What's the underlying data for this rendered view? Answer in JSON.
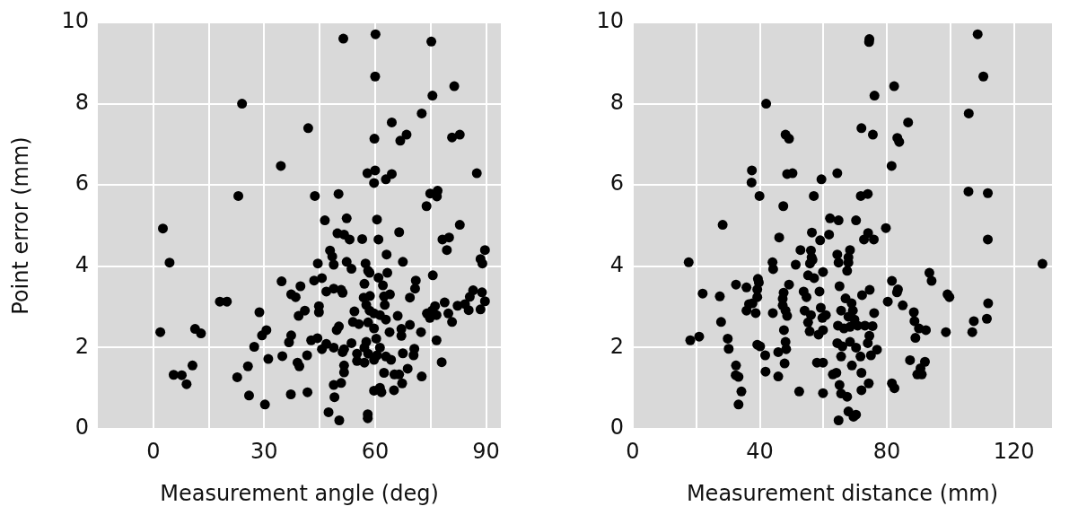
{
  "chart_data": [
    {
      "type": "scatter",
      "xlabel": "Measurement angle (deg)",
      "ylabel": "Point error (mm)",
      "color": "#000000",
      "marker": "circle",
      "grid": true,
      "xlim": [
        -15,
        94
      ],
      "xticks": [
        0,
        {
          "value": 15,
          "label": null
        },
        30,
        {
          "value": 45,
          "label": null
        },
        60,
        {
          "value": 75,
          "label": null
        },
        90
      ],
      "ylim": [
        0,
        10
      ],
      "yticks": [
        0,
        2,
        4,
        6,
        8,
        10
      ],
      "x": [
        24,
        34.5,
        23,
        2.6,
        4.4,
        34.7,
        39.8,
        37.3,
        38.5,
        18,
        19.9,
        28.7,
        39.3,
        1.9,
        11.3,
        12.9,
        30.6,
        29.4,
        37.3,
        36.7,
        27.3,
        10.6,
        5.5,
        7.7,
        9,
        31.1,
        34.9,
        25.6,
        22.7,
        39,
        39.5,
        25.9,
        30.2,
        37.2,
        41,
        51.4,
        60.1,
        75.2,
        60,
        81.4,
        75.5,
        72.6,
        41.9,
        64.5,
        59.8,
        68.5,
        66.8,
        80.8,
        82.9,
        57.9,
        60,
        59.7,
        64.5,
        62.9,
        87.5,
        43.7,
        50.1,
        74.9,
        76.9,
        76.7,
        73.9,
        46.4,
        52.3,
        60.5,
        82.9,
        49.8,
        51.6,
        53.1,
        56.5,
        60.9,
        66.5,
        78.2,
        80,
        79.4,
        89.7,
        88.5,
        89,
        47.8,
        48.4,
        63.1,
        67.5,
        44.5,
        48.8,
        52.3,
        53.6,
        57.4,
        58.1,
        58.5,
        63.3,
        60.9,
        75.6,
        43.5,
        45.6,
        71,
        70.8,
        57.1,
        62.1,
        46.8,
        48.8,
        50.8,
        51.2,
        56.9,
        58.6,
        62.4,
        64,
        69.4,
        57.6,
        62.6,
        86.5,
        88.9,
        85.6,
        89.7,
        88.5,
        85.3,
        78.8,
        82.3,
        84.3,
        76.2,
        74,
        75.4,
        74.8,
        76.6,
        79.8,
        80.8,
        44.8,
        44.8,
        54.4,
        58.5,
        59.7,
        61.3,
        66.1,
        54,
        55.6,
        58.1,
        59.7,
        62.9,
        69.4,
        72.4,
        50.2,
        49.6,
        63.9,
        67.1,
        67.1,
        60.3,
        57.6,
        42.7,
        44.4,
        46.8,
        45.6,
        48.8,
        53.6,
        51.6,
        51.2,
        57.1,
        55.1,
        58.1,
        61.3,
        60.5,
        67.5,
        70.6,
        70.4,
        76.6,
        41.6,
        55.1,
        57.1,
        59.7,
        64.3,
        62.9,
        78,
        51.6,
        51.6,
        68.8,
        62.4,
        65.2,
        66.5,
        72.6,
        48.8,
        50.8,
        67.3,
        41.7,
        49,
        59.7,
        61.7,
        61.3,
        65.1,
        47.4,
        50.3,
        58,
        58
      ],
      "values": [
        8.0,
        6.47,
        5.73,
        4.93,
        4.09,
        3.63,
        3.51,
        3.31,
        3.24,
        3.13,
        3.13,
        2.87,
        2.78,
        2.38,
        2.46,
        2.35,
        2.43,
        2.3,
        2.3,
        2.13,
        2.02,
        1.56,
        1.33,
        1.32,
        1.1,
        1.72,
        1.79,
        1.54,
        1.27,
        1.63,
        1.54,
        0.82,
        0.6,
        0.85,
        2.91,
        9.6,
        9.71,
        9.53,
        8.67,
        8.43,
        8.2,
        7.76,
        7.4,
        7.54,
        7.14,
        7.24,
        7.09,
        7.17,
        7.24,
        6.29,
        6.36,
        6.05,
        6.27,
        6.14,
        6.29,
        5.73,
        5.78,
        5.79,
        5.86,
        5.72,
        5.48,
        5.13,
        5.18,
        5.15,
        5.02,
        4.81,
        4.78,
        4.66,
        4.67,
        4.66,
        4.84,
        4.66,
        4.71,
        4.4,
        4.4,
        4.18,
        4.07,
        4.39,
        4.24,
        4.29,
        4.11,
        4.07,
        4.04,
        4.11,
        3.94,
        4.07,
        3.89,
        3.84,
        3.84,
        3.72,
        3.78,
        3.65,
        3.71,
        3.65,
        3.45,
        3.57,
        3.53,
        3.38,
        3.45,
        3.42,
        3.35,
        3.23,
        3.27,
        3.26,
        3.31,
        3.23,
        3.05,
        3.05,
        3.41,
        3.36,
        3.25,
        3.14,
        2.94,
        2.92,
        3.11,
        3.03,
        3.07,
        3.02,
        2.84,
        2.91,
        2.73,
        2.8,
        2.84,
        2.63,
        3.02,
        2.87,
        2.89,
        2.91,
        2.84,
        2.8,
        2.78,
        2.63,
        2.58,
        2.62,
        2.47,
        2.69,
        2.56,
        2.38,
        2.52,
        2.43,
        2.38,
        2.46,
        2.29,
        2.22,
        2.14,
        2.18,
        2.23,
        2.09,
        1.96,
        2.0,
        2.11,
        1.96,
        1.89,
        2.0,
        1.85,
        1.85,
        2.0,
        1.81,
        1.86,
        1.97,
        1.81,
        2.18,
        1.81,
        1.67,
        1.63,
        1.7,
        1.7,
        1.78,
        1.64,
        1.56,
        1.39,
        1.48,
        1.38,
        1.34,
        1.34,
        1.29,
        1.08,
        1.13,
        1.12,
        0.9,
        0.78,
        0.94,
        0.9,
        1.01,
        0.95,
        0.41,
        0.21,
        0.36,
        0.26
      ]
    },
    {
      "type": "scatter",
      "xlabel": "Measurement distance (mm)",
      "color": "#000000",
      "marker": "circle",
      "grid": true,
      "xlim": [
        0,
        132
      ],
      "xticks": [
        0,
        {
          "value": 20,
          "label": null
        },
        40,
        {
          "value": 60,
          "label": null
        },
        80,
        {
          "value": 100,
          "label": null
        },
        120
      ],
      "ylim": [
        0,
        10
      ],
      "yticks": [
        0,
        2,
        4,
        6,
        8,
        10
      ],
      "x": [
        42,
        48.1,
        49.2,
        37.5,
        37.4,
        48.6,
        50.3,
        59.4,
        39.9,
        57,
        47.4,
        28.3,
        62.1,
        46.1,
        56.4,
        59,
        61.8,
        52.8,
        56.1,
        56.3,
        55.8,
        56.6,
        17.6,
        44,
        44.2,
        51.3,
        59.9,
        55.2,
        57.1,
        39.4,
        39.7,
        32.5,
        35.8,
        49.2,
        22,
        27.4,
        39.2,
        39.2,
        47.5,
        47.2,
        47.2,
        53.8,
        54.7,
        58.8,
        36.6,
        37.7,
        35.8,
        38.7,
        44.1,
        48.6,
        48.1,
        54.1,
        56.1,
        55.2,
        55.7,
        59.2,
        60.8,
        59.7,
        27.8,
        47.6,
        58.5,
        59.9,
        18.1,
        20.9,
        29.9,
        30.2,
        39.2,
        40.1,
        41.7,
        45.8,
        48.3,
        48.1,
        58,
        59.9,
        47.8,
        32.5,
        32.4,
        33.3,
        41.8,
        45.8,
        34.2,
        33.3,
        52.4,
        59.9,
        63,
        74.5,
        74.4,
        108.6,
        110.4,
        82.3,
        76.1,
        105.8,
        86.7,
        72,
        75.6,
        83.3,
        83.9,
        64.4,
        81.5,
        71.8,
        74,
        105.7,
        111.8,
        64.8,
        70.3,
        79.7,
        74.1,
        72.8,
        75.9,
        111.8,
        68.4,
        67.9,
        67.9,
        67.5,
        64.4,
        64.8,
        129,
        93.4,
        94.1,
        81.6,
        83.5,
        83.2,
        65.1,
        74.6,
        72.2,
        67,
        68.9,
        65.6,
        69.3,
        67.9,
        69.8,
        80.3,
        85,
        99.1,
        99.7,
        111.9,
        111.5,
        76,
        88.5,
        88.7,
        90.1,
        92.3,
        89,
        107.4,
        106.9,
        98.6,
        64.6,
        66.5,
        68.4,
        70.8,
        73.1,
        75.5,
        74.5,
        74,
        76.9,
        75,
        64.4,
        66,
        68.4,
        70.3,
        65.6,
        71.7,
        69,
        72,
        87.3,
        92,
        90.6,
        89.6,
        91,
        64.1,
        65.1,
        65.6,
        67.5,
        74.3,
        72,
        81.6,
        82.4,
        64.8,
        67.9,
        69.5,
        70.3
      ],
      "values": [
        8.0,
        7.24,
        7.14,
        6.36,
        6.06,
        6.27,
        6.29,
        6.14,
        5.73,
        5.73,
        5.48,
        5.02,
        5.18,
        4.71,
        4.83,
        4.64,
        4.78,
        4.4,
        4.39,
        4.22,
        4.07,
        4.16,
        4.1,
        4.1,
        3.93,
        4.04,
        3.86,
        3.78,
        3.71,
        3.69,
        3.6,
        3.55,
        3.48,
        3.55,
        3.33,
        3.26,
        3.43,
        3.24,
        3.35,
        3.2,
        3.04,
        3.38,
        3.24,
        3.38,
        3.07,
        3.09,
        2.91,
        2.85,
        2.85,
        2.78,
        2.91,
        2.91,
        2.8,
        2.62,
        2.4,
        2.98,
        2.8,
        2.73,
        2.63,
        2.43,
        2.32,
        2.43,
        2.18,
        2.27,
        2.22,
        1.97,
        2.07,
        2.03,
        1.81,
        1.89,
        1.96,
        2.14,
        1.63,
        1.63,
        1.61,
        1.56,
        1.32,
        1.28,
        1.41,
        1.29,
        0.92,
        0.6,
        0.92,
        0.88,
        1.34,
        9.59,
        9.52,
        9.71,
        8.67,
        8.43,
        8.2,
        7.76,
        7.54,
        7.4,
        7.24,
        7.16,
        7.06,
        6.29,
        6.47,
        5.73,
        5.78,
        5.84,
        5.8,
        5.13,
        5.13,
        4.94,
        4.82,
        4.66,
        4.66,
        4.66,
        4.4,
        4.22,
        4.09,
        3.89,
        4.29,
        4.09,
        4.06,
        3.84,
        3.64,
        3.64,
        3.43,
        3.36,
        3.51,
        3.42,
        3.29,
        3.21,
        3.09,
        2.91,
        2.91,
        2.76,
        2.69,
        3.13,
        3.04,
        3.31,
        3.24,
        3.09,
        2.71,
        2.85,
        2.87,
        2.65,
        2.47,
        2.43,
        2.24,
        2.65,
        2.38,
        2.38,
        2.54,
        2.47,
        2.51,
        2.54,
        2.54,
        2.53,
        2.29,
        2.11,
        1.95,
        1.81,
        2.11,
        2.03,
        2.14,
        2.0,
        1.78,
        1.78,
        1.56,
        1.38,
        1.69,
        1.65,
        1.49,
        1.34,
        1.34,
        1.38,
        1.08,
        0.87,
        0.79,
        1.12,
        0.95,
        1.12,
        1.0,
        0.21,
        0.43,
        0.3,
        0.35
      ]
    }
  ]
}
